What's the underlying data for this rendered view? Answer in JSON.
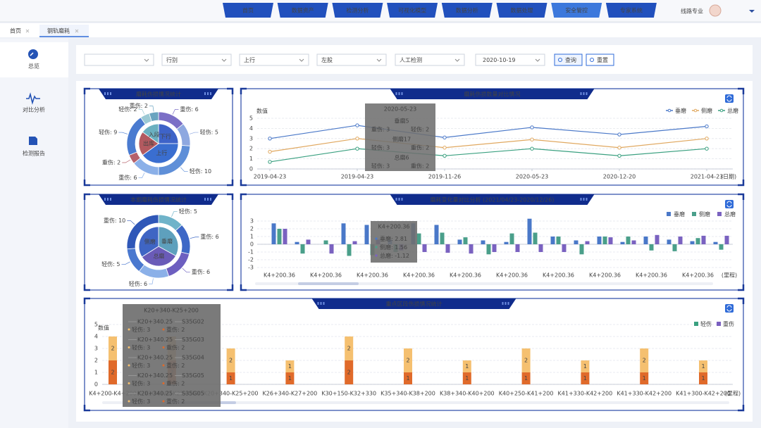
{
  "nav": {
    "items": [
      "首页",
      "数据资产",
      "检测分析",
      "可视化模型",
      "数据分析",
      "数据处理",
      "安全管控",
      "专家系统"
    ],
    "active": 6,
    "user": "线路专业"
  },
  "tabs": [
    "首页",
    "钢轨磨耗"
  ],
  "sidebar": [
    "总览",
    "对比分析",
    "检测报告"
  ],
  "filters": {
    "selects": [
      "行别",
      "上行",
      "左股",
      "人工检测",
      "2020-10-19"
    ],
    "buttons": [
      "查询",
      "重置"
    ]
  },
  "ring_charts": [
    {
      "type": "pie",
      "title": "磨耗伤损情况统计",
      "inner": {
        "categories": [
          "下行",
          "上行",
          "出库",
          "入段"
        ],
        "values": [
          25,
          40,
          20,
          15
        ],
        "colors": [
          "#3e63c8",
          "#3a6ed0",
          "#b35a60",
          "#6ab0c0"
        ]
      },
      "outer": {
        "values": [
          6,
          5,
          10,
          6,
          2,
          9,
          2,
          2
        ],
        "value_labels": [
          "重伤: 6",
          "轻伤: 5",
          "轻伤: 10",
          "重伤: 6",
          "重伤: 2",
          "轻伤: 9",
          "轻伤: 2",
          "重伤: 2"
        ],
        "colors": [
          "#7b6fc6",
          "#8ea8e0",
          "#5f8fd8",
          "#8bb0e8",
          "#b5616b",
          "#4a7bd0",
          "#9bc9d4",
          "#6aa4c0"
        ]
      }
    },
    {
      "type": "pie",
      "title": "本期磨耗伤损情况统计",
      "inner": {
        "categories": [
          "垂磨",
          "总磨",
          "侧磨"
        ],
        "values": [
          33,
          33,
          34
        ],
        "colors": [
          "#5ea0bd",
          "#6a5bb8",
          "#3f65c4"
        ]
      },
      "outer": {
        "values": [
          5,
          6,
          6,
          6,
          5,
          10
        ],
        "value_labels": [
          "轻伤: 5",
          "重伤: 6",
          "重伤: 6",
          "轻伤: 6",
          "轻伤: 5",
          "重伤: 10"
        ],
        "colors": [
          "#6fb3c9",
          "#3e68c6",
          "#6d5fc0",
          "#8bb0e8",
          "#4a78cf",
          "#2f57b8"
        ]
      }
    }
  ],
  "line_chart": {
    "type": "line",
    "title": "磨耗伤损数量对比情况",
    "y_label": "数值",
    "x_unit": "(日期)",
    "categories": [
      "2019-04-23",
      "2019-04-23",
      "2019-11-26",
      "2020-05-23",
      "2020-12-20",
      "2021-04-23"
    ],
    "series": [
      {
        "name": "垂磨",
        "color": "#4a78c8",
        "values": [
          3.0,
          4.3,
          3.1,
          4.1,
          3.4,
          4.2
        ]
      },
      {
        "name": "侧磨",
        "color": "#e0a860",
        "values": [
          1.7,
          3.0,
          2.1,
          2.9,
          2.1,
          3.0
        ]
      },
      {
        "name": "总磨",
        "color": "#3aa080",
        "values": [
          0.7,
          2.0,
          1.3,
          2.0,
          1.3,
          2.0
        ]
      }
    ],
    "ylim": [
      0,
      5
    ],
    "yticks": [
      0,
      1,
      2,
      3,
      4,
      5
    ],
    "grid": true,
    "tooltip": {
      "title": "2020-05-23",
      "groups": [
        [
          "垂磨5",
          "重伤: 3",
          "轻伤: 2"
        ],
        [
          "侧磨17",
          "轻伤: 3",
          "重伤: 2"
        ],
        [
          "总磨6",
          "轻伤: 3",
          "重伤: 2"
        ]
      ]
    }
  },
  "bar_chart": {
    "type": "bar",
    "title": "磨耗变化量对比分析 (2021/04/23-2020/12/26)",
    "x_unit": "(里程)",
    "categories": [
      "K4+200.36",
      null,
      "K4+200.36",
      null,
      "K4+200.36",
      null,
      "K4+200.36",
      null,
      "K4+200.36",
      null,
      "K4+200.36",
      null,
      "K4+200.36",
      null,
      "K4+200.36",
      null,
      "K4+200.36",
      null,
      "K4+200.36",
      null
    ],
    "series": [
      {
        "name": "垂磨",
        "color": "#4a78c8",
        "values": [
          2.7,
          0.3,
          0,
          2.7,
          2.5,
          0.6,
          2.7,
          2.5,
          0.6,
          0.5,
          0.3,
          3.3,
          1.0,
          0.5,
          1.0,
          0.3,
          1.0,
          0.6,
          0.4,
          0.3
        ]
      },
      {
        "name": "侧磨",
        "color": "#4a9f8a",
        "values": [
          2.0,
          -1.2,
          0.5,
          -1.5,
          -1.4,
          -1.0,
          1.4,
          1.5,
          0.9,
          -1.3,
          1.4,
          1.5,
          1.0,
          -1.3,
          1.0,
          1.0,
          -0.8,
          -0.9,
          0.8,
          -0.7
        ]
      },
      {
        "name": "总磨",
        "color": "#7a62c0",
        "values": [
          2.0,
          0.6,
          -1.2,
          0.4,
          0.6,
          -0.8,
          -1.0,
          -1.1,
          -1.2,
          -1.0,
          -1.0,
          -1.0,
          -1.0,
          0.4,
          0.9,
          0.5,
          1.2,
          1.0,
          1.1,
          1.1
        ]
      }
    ],
    "ylim": [
      -3,
      3
    ],
    "yticks": [
      -3,
      -2,
      -1,
      0,
      1,
      2,
      3
    ],
    "grid": true,
    "tooltip": {
      "title": "K4+200.36",
      "rows": [
        "垂磨: 2.81",
        "侧磨: 1.56",
        "总磨: -1.12"
      ]
    }
  },
  "stack_chart": {
    "type": "stacked_bar",
    "title": "重点区段伤损情况统计",
    "y_label": "数值",
    "x_unit": "(里程)",
    "categories": [
      "K4+200-K4+200",
      "K20+340-K25+200",
      "K20+340-K25+200",
      "K26+340-K27+200",
      "K30+150-K32+330",
      "K35+340-K38+200",
      "K38+340-K40+200",
      "K40+250-K41+200",
      "K41+330-K42+200",
      "K41+330-K42+200",
      "K41+300-K42+200"
    ],
    "series": [
      {
        "name": "重伤",
        "color": "#e06a2a",
        "legend_color": "#7a5fc0",
        "values": [
          2,
          2,
          1,
          1,
          2,
          1,
          1,
          1,
          1,
          1,
          1
        ]
      },
      {
        "name": "轻伤",
        "color": "#f5c070",
        "legend_color": "#3aa080",
        "values": [
          2,
          2,
          2,
          1,
          2,
          2,
          1,
          2,
          1,
          2,
          1
        ]
      }
    ],
    "legend_order": [
      1,
      0
    ],
    "ylim": [
      0,
      5
    ],
    "yticks": [
      0,
      1,
      2,
      3,
      4,
      5
    ],
    "grid": true,
    "tooltip": {
      "title": "K20+340-K25+200",
      "groups": [
        [
          "K20+340.25",
          "S35G02",
          "轻伤: 3",
          "重伤: 2"
        ],
        [
          "K20+340.25",
          "S35G03",
          "轻伤: 3",
          "重伤: 2"
        ],
        [
          "K20+340.25",
          "S35G04",
          "轻伤: 3",
          "重伤: 2"
        ],
        [
          "K20+340.25",
          "S35G05",
          "轻伤: 3",
          "重伤: 2"
        ],
        [
          "K20+340.25",
          "S35G05",
          "轻伤: 3",
          "重伤: 2"
        ]
      ]
    }
  }
}
